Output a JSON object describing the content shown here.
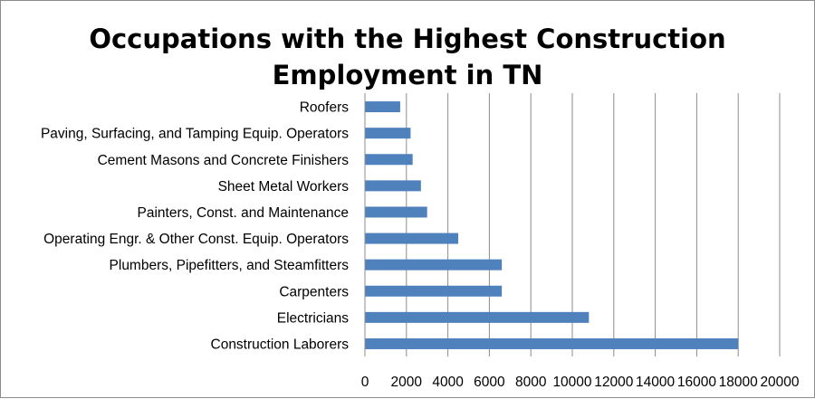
{
  "chart_data": {
    "type": "bar",
    "orientation": "horizontal",
    "title": [
      "Occupations with the Highest Construction",
      "Employment in TN"
    ],
    "categories": [
      "Construction Laborers",
      "Electricians",
      "Carpenters",
      "Plumbers, Pipefitters, and Steamfitters",
      "Operating Engr. & Other Const. Equip. Operators",
      "Painters, Const. and Maintenance",
      "Sheet Metal Workers",
      "Cement Masons and Concrete Finishers",
      "Paving, Surfacing, and Tamping Equip. Operators",
      "Roofers"
    ],
    "values": [
      18000,
      10800,
      6600,
      6600,
      4500,
      3000,
      2700,
      2300,
      2200,
      1700
    ],
    "xlim": [
      0,
      20000
    ],
    "xticks": [
      0,
      2000,
      4000,
      6000,
      8000,
      10000,
      12000,
      14000,
      16000,
      18000,
      20000
    ],
    "xlabel": "",
    "ylabel": "",
    "grid": "vertical",
    "legend": "none",
    "bar_color": "#4f81bd"
  }
}
